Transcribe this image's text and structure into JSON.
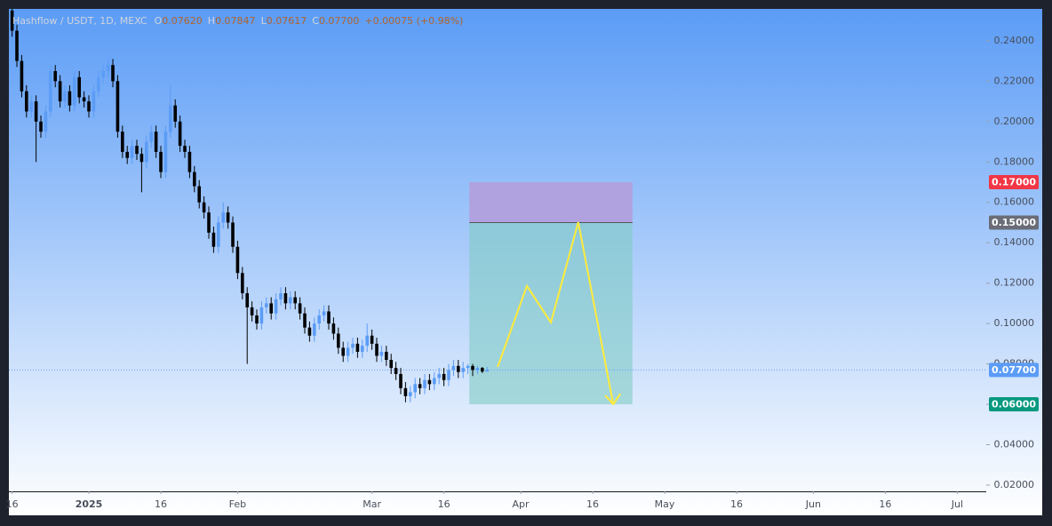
{
  "chart_data": {
    "type": "candlestick",
    "title": "Hashflow / USDT, 1D, MEXC",
    "ohlc_legend": [
      {
        "key": "O",
        "value": "0.07620"
      },
      {
        "key": "H",
        "value": "0.07847"
      },
      {
        "key": "L",
        "value": "0.07617"
      },
      {
        "key": "C",
        "value": "0.07700"
      }
    ],
    "change": "+0.00075 (+0.98%)",
    "up_color": "#5b9cf6",
    "down_color": "#000000",
    "xlim": [
      -16.67,
      187.04
    ],
    "ylim": [
      0.0169,
      0.2558
    ],
    "xticks": [
      {
        "value": -16,
        "label": "16"
      },
      {
        "value": 0,
        "label": "2025"
      },
      {
        "value": 15,
        "label": "16"
      },
      {
        "value": 31,
        "label": "Feb"
      },
      {
        "value": 59,
        "label": "Mar"
      },
      {
        "value": 74,
        "label": "16"
      },
      {
        "value": 90,
        "label": "Apr"
      },
      {
        "value": 105,
        "label": "16"
      },
      {
        "value": 120,
        "label": "May"
      },
      {
        "value": 135,
        "label": "16"
      },
      {
        "value": 151,
        "label": "Jun"
      },
      {
        "value": 166,
        "label": "16"
      },
      {
        "value": 181,
        "label": "Jul"
      }
    ],
    "yticks": [
      {
        "value": 0.02,
        "label": "0.02000"
      },
      {
        "value": 0.04,
        "label": "0.04000"
      },
      {
        "value": 0.06,
        "label": "0.06000"
      },
      {
        "value": 0.08,
        "label": "0.08000"
      },
      {
        "value": 0.1,
        "label": "0.10000"
      },
      {
        "value": 0.12,
        "label": "0.12000"
      },
      {
        "value": 0.14,
        "label": "0.14000"
      },
      {
        "value": 0.16,
        "label": "0.16000"
      },
      {
        "value": 0.18,
        "label": "0.18000"
      },
      {
        "value": 0.2,
        "label": "0.20000"
      },
      {
        "value": 0.22,
        "label": "0.22000"
      },
      {
        "value": 0.24,
        "label": "0.24000"
      }
    ],
    "x": [
      -16,
      -15,
      -14,
      -13,
      -12,
      -11,
      -10,
      -9,
      -8,
      -7,
      -6,
      -5,
      -4,
      -3,
      -2,
      -1,
      0,
      1,
      2,
      3,
      4,
      5,
      6,
      7,
      8,
      9,
      10,
      11,
      12,
      13,
      14,
      15,
      16,
      17,
      18,
      19,
      20,
      21,
      22,
      23,
      24,
      25,
      26,
      27,
      28,
      29,
      30,
      31,
      32,
      33,
      34,
      35,
      36,
      37,
      38,
      39,
      40,
      41,
      42,
      43,
      44,
      45,
      46,
      47,
      48,
      49,
      50,
      51,
      52,
      53,
      54,
      55,
      56,
      57,
      58,
      59,
      60,
      61,
      62,
      63,
      64,
      65,
      66,
      67,
      68,
      69,
      70,
      71,
      72,
      73,
      74,
      75,
      76,
      77,
      78,
      79,
      80,
      81,
      82,
      83
    ],
    "open": [
      0.255,
      0.245,
      0.23,
      0.215,
      0.205,
      0.21,
      0.2,
      0.195,
      0.205,
      0.225,
      0.22,
      0.21,
      0.215,
      0.208,
      0.222,
      0.212,
      0.21,
      0.205,
      0.215,
      0.222,
      0.225,
      0.228,
      0.22,
      0.195,
      0.185,
      0.182,
      0.188,
      0.184,
      0.18,
      0.19,
      0.195,
      0.185,
      0.175,
      0.195,
      0.208,
      0.2,
      0.188,
      0.185,
      0.175,
      0.168,
      0.16,
      0.155,
      0.145,
      0.138,
      0.15,
      0.155,
      0.15,
      0.138,
      0.125,
      0.115,
      0.108,
      0.104,
      0.1,
      0.108,
      0.11,
      0.105,
      0.112,
      0.115,
      0.11,
      0.113,
      0.11,
      0.105,
      0.098,
      0.094,
      0.1,
      0.104,
      0.106,
      0.1,
      0.095,
      0.088,
      0.084,
      0.088,
      0.09,
      0.086,
      0.089,
      0.094,
      0.09,
      0.084,
      0.086,
      0.082,
      0.078,
      0.075,
      0.068,
      0.064,
      0.066,
      0.07,
      0.068,
      0.072,
      0.07,
      0.073,
      0.075,
      0.072,
      0.077,
      0.079,
      0.076,
      0.078,
      0.079,
      0.077,
      0.078,
      0.0762
    ],
    "high": [
      0.258,
      0.248,
      0.233,
      0.218,
      0.213,
      0.213,
      0.203,
      0.208,
      0.228,
      0.228,
      0.223,
      0.218,
      0.218,
      0.225,
      0.225,
      0.215,
      0.213,
      0.218,
      0.225,
      0.228,
      0.231,
      0.231,
      0.223,
      0.198,
      0.188,
      0.191,
      0.191,
      0.187,
      0.193,
      0.198,
      0.198,
      0.188,
      0.198,
      0.218,
      0.211,
      0.203,
      0.191,
      0.188,
      0.178,
      0.171,
      0.163,
      0.158,
      0.148,
      0.153,
      0.16,
      0.158,
      0.153,
      0.141,
      0.128,
      0.118,
      0.111,
      0.107,
      0.111,
      0.113,
      0.113,
      0.115,
      0.118,
      0.118,
      0.116,
      0.116,
      0.113,
      0.108,
      0.101,
      0.103,
      0.107,
      0.109,
      0.109,
      0.103,
      0.098,
      0.091,
      0.091,
      0.093,
      0.093,
      0.092,
      0.1,
      0.097,
      0.093,
      0.089,
      0.089,
      0.085,
      0.081,
      0.078,
      0.071,
      0.069,
      0.073,
      0.073,
      0.075,
      0.075,
      0.076,
      0.078,
      0.078,
      0.08,
      0.082,
      0.082,
      0.081,
      0.08,
      0.08,
      0.079,
      0.0785,
      0.07847
    ],
    "low": [
      0.242,
      0.227,
      0.212,
      0.202,
      0.202,
      0.18,
      0.192,
      0.192,
      0.202,
      0.217,
      0.207,
      0.207,
      0.205,
      0.205,
      0.209,
      0.207,
      0.202,
      0.202,
      0.212,
      0.219,
      0.222,
      0.217,
      0.192,
      0.182,
      0.179,
      0.179,
      0.181,
      0.165,
      0.177,
      0.187,
      0.182,
      0.172,
      0.172,
      0.192,
      0.197,
      0.185,
      0.182,
      0.172,
      0.165,
      0.157,
      0.152,
      0.142,
      0.135,
      0.135,
      0.147,
      0.147,
      0.135,
      0.122,
      0.112,
      0.08,
      0.101,
      0.097,
      0.097,
      0.105,
      0.102,
      0.102,
      0.109,
      0.107,
      0.107,
      0.107,
      0.102,
      0.095,
      0.091,
      0.091,
      0.097,
      0.101,
      0.097,
      0.092,
      0.085,
      0.081,
      0.081,
      0.085,
      0.083,
      0.083,
      0.086,
      0.087,
      0.081,
      0.081,
      0.079,
      0.075,
      0.072,
      0.065,
      0.061,
      0.061,
      0.063,
      0.065,
      0.065,
      0.067,
      0.067,
      0.07,
      0.069,
      0.069,
      0.074,
      0.073,
      0.073,
      0.075,
      0.074,
      0.075,
      0.0755,
      0.07617
    ],
    "close": [
      0.245,
      0.23,
      0.215,
      0.205,
      0.21,
      0.2,
      0.195,
      0.205,
      0.225,
      0.22,
      0.21,
      0.215,
      0.208,
      0.222,
      0.212,
      0.21,
      0.205,
      0.215,
      0.222,
      0.225,
      0.228,
      0.22,
      0.195,
      0.185,
      0.182,
      0.188,
      0.184,
      0.18,
      0.19,
      0.195,
      0.185,
      0.175,
      0.195,
      0.208,
      0.2,
      0.188,
      0.185,
      0.175,
      0.168,
      0.16,
      0.155,
      0.145,
      0.138,
      0.15,
      0.155,
      0.15,
      0.138,
      0.125,
      0.115,
      0.108,
      0.104,
      0.1,
      0.108,
      0.11,
      0.105,
      0.112,
      0.115,
      0.11,
      0.113,
      0.11,
      0.105,
      0.098,
      0.094,
      0.1,
      0.104,
      0.106,
      0.1,
      0.095,
      0.088,
      0.084,
      0.088,
      0.09,
      0.086,
      0.089,
      0.094,
      0.09,
      0.084,
      0.086,
      0.082,
      0.078,
      0.075,
      0.068,
      0.064,
      0.066,
      0.07,
      0.068,
      0.072,
      0.07,
      0.073,
      0.075,
      0.072,
      0.077,
      0.079,
      0.076,
      0.078,
      0.079,
      0.077,
      0.078,
      0.0762,
      0.077
    ],
    "position": {
      "x": [
        79.3,
        113.3
      ],
      "stop": 0.17,
      "entry": 0.15,
      "target": 0.06,
      "stop_color": "#b39ddb",
      "target_color": "#80cbc4"
    },
    "projection": {
      "x": [
        85.2,
        91.3,
        96.3,
        102,
        109.3
      ],
      "y": [
        0.0785,
        0.1186,
        0.1005,
        0.1502,
        0.06
      ],
      "color": "#ffeb3b"
    },
    "last_price": 0.077,
    "price_labels": [
      {
        "value": 0.17,
        "label": "0.17000",
        "color": "#f23645"
      },
      {
        "value": 0.15,
        "label": "0.15000",
        "color": "#6a6d78"
      },
      {
        "value": 0.077,
        "label": "0.07700",
        "color": "#5b9cf6"
      },
      {
        "value": 0.06,
        "label": "0.06000",
        "color": "#089981"
      }
    ]
  }
}
